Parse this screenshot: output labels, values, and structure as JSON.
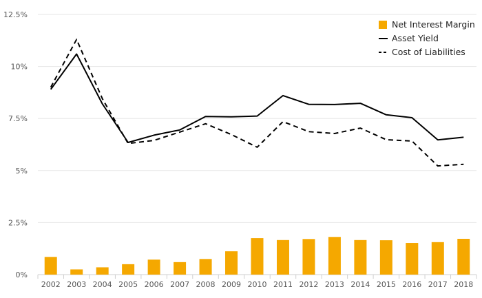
{
  "chart_data": {
    "type": "bar+line",
    "categories": [
      "2002",
      "2003",
      "2004",
      "2005",
      "2006",
      "2007",
      "2008",
      "2009",
      "2010",
      "2011",
      "2012",
      "2013",
      "2014",
      "2015",
      "2016",
      "2017",
      "2018"
    ],
    "series": [
      {
        "name": "Net Interest Margin",
        "kind": "bar",
        "color": "#f5a800",
        "values": [
          0.85,
          0.25,
          0.35,
          0.5,
          0.72,
          0.6,
          0.75,
          1.12,
          1.75,
          1.66,
          1.71,
          1.81,
          1.66,
          1.65,
          1.52,
          1.56,
          1.72
        ]
      },
      {
        "name": "Asset Yield",
        "kind": "line",
        "style": "solid",
        "color": "#000000",
        "values": [
          8.9,
          10.6,
          8.2,
          6.35,
          6.7,
          6.95,
          7.6,
          7.58,
          7.62,
          8.6,
          8.18,
          8.17,
          8.23,
          7.68,
          7.54,
          6.47,
          6.6
        ]
      },
      {
        "name": "Cost of Liabilities",
        "kind": "line",
        "style": "dashed",
        "color": "#000000",
        "values": [
          9.0,
          11.3,
          8.45,
          6.3,
          6.45,
          6.85,
          7.25,
          6.73,
          6.12,
          7.35,
          6.87,
          6.78,
          7.04,
          6.48,
          6.42,
          5.22,
          5.3
        ]
      }
    ],
    "y_ticks": [
      "0%",
      "2.5%",
      "5%",
      "7.5%",
      "10%",
      "12.5%"
    ],
    "y_tick_values": [
      0,
      2.5,
      5,
      7.5,
      10,
      12.5
    ],
    "ylim": [
      0,
      12.5
    ],
    "grid": true,
    "legend_position": "top-right"
  }
}
